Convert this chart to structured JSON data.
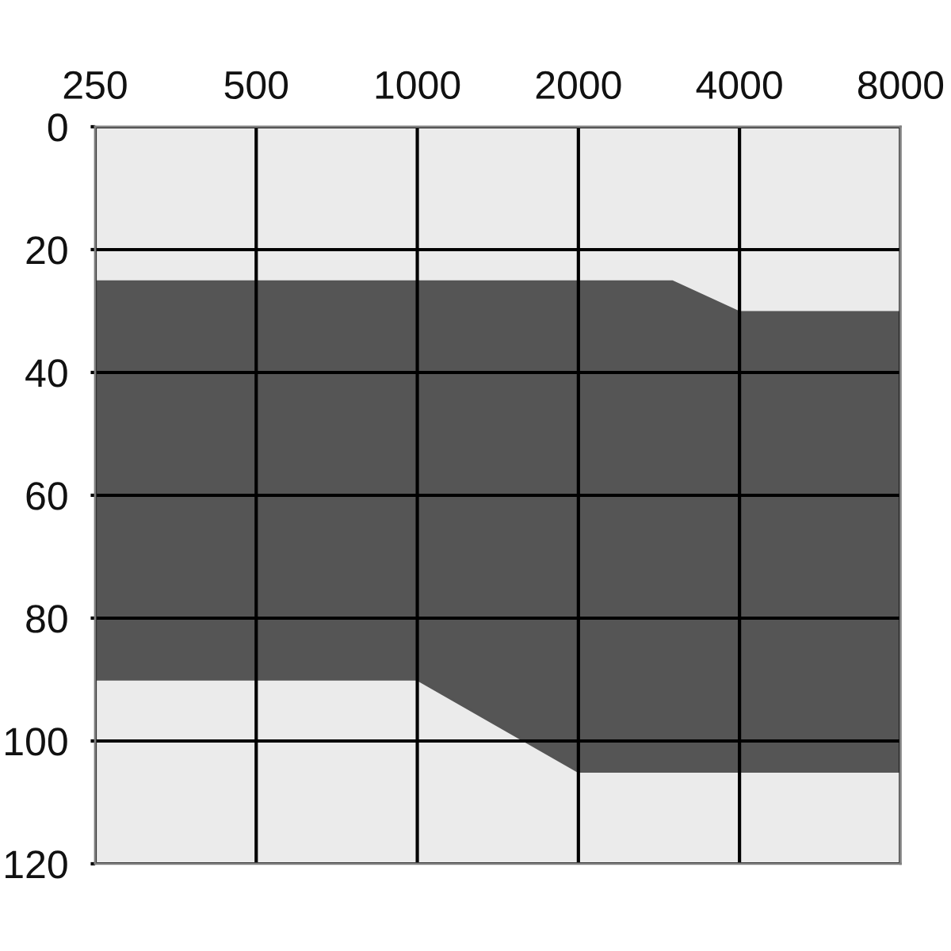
{
  "chart_data": {
    "type": "line",
    "x": [
      250,
      500,
      1000,
      2000,
      3000,
      4000,
      8000
    ],
    "series": [
      {
        "color": "#555555",
        "values": [
          90,
          90,
          90,
          105,
          105,
          105,
          105
        ],
        "lower": [
          25,
          25,
          25,
          25,
          25,
          30,
          30
        ],
        "upper": [
          90,
          90,
          90,
          105,
          105,
          105,
          105
        ]
      }
    ],
    "log": "x",
    "xlim": [
      250,
      8000
    ],
    "xticks": [
      250,
      500,
      1000,
      2000,
      4000,
      8000
    ],
    "ylim": [
      120,
      0
    ],
    "yticks": [
      0,
      20,
      40,
      60,
      80,
      100,
      120
    ],
    "grid": true
  }
}
